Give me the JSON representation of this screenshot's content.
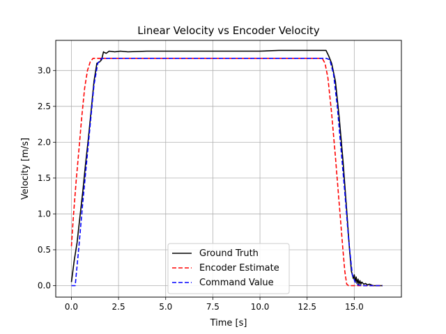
{
  "chart_data": {
    "type": "line",
    "title": "Linear Velocity vs Encoder Velocity",
    "xlabel": "Time [s]",
    "ylabel": "Velocity [m/s]",
    "xlim": [
      -0.83,
      17.5
    ],
    "ylim": [
      -0.16,
      3.42
    ],
    "xticks": [
      0.0,
      2.5,
      5.0,
      7.5,
      10.0,
      12.5,
      15.0
    ],
    "xtick_labels": [
      "0.0",
      "2.5",
      "5.0",
      "7.5",
      "10.0",
      "12.5",
      "15.0"
    ],
    "yticks": [
      0.0,
      0.5,
      1.0,
      1.5,
      2.0,
      2.5,
      3.0
    ],
    "ytick_labels": [
      "0.0",
      "0.5",
      "1.0",
      "1.5",
      "2.0",
      "2.5",
      "3.0"
    ],
    "grid": true,
    "legend_position": "bottom-center",
    "series": [
      {
        "name": "Ground Truth",
        "color": "#000000",
        "style": "solid",
        "x": [
          0.0,
          0.15,
          0.3,
          0.45,
          0.6,
          0.75,
          0.9,
          1.05,
          1.2,
          1.35,
          1.5,
          1.6,
          1.7,
          1.75,
          1.85,
          2.0,
          2.3,
          2.6,
          3.0,
          4.0,
          5.0,
          6.0,
          7.0,
          8.0,
          9.0,
          10.0,
          11.0,
          12.0,
          13.0,
          13.5,
          13.65,
          13.8,
          14.0,
          14.2,
          14.4,
          14.6,
          14.75,
          14.85,
          14.95,
          15.0,
          15.05,
          15.1,
          15.15,
          15.2,
          15.25,
          15.3,
          15.35,
          15.4,
          15.5,
          15.6,
          15.7,
          15.8,
          16.0,
          16.5
        ],
        "values": [
          0.05,
          0.35,
          0.6,
          0.95,
          1.3,
          1.7,
          2.05,
          2.45,
          2.85,
          3.1,
          3.12,
          3.15,
          3.26,
          3.25,
          3.24,
          3.27,
          3.26,
          3.27,
          3.26,
          3.27,
          3.27,
          3.27,
          3.27,
          3.27,
          3.27,
          3.27,
          3.28,
          3.28,
          3.28,
          3.28,
          3.2,
          3.1,
          2.85,
          2.35,
          1.75,
          1.05,
          0.5,
          0.2,
          0.1,
          0.15,
          0.05,
          0.12,
          0.03,
          0.09,
          0.02,
          0.07,
          0.02,
          0.05,
          0.02,
          0.03,
          0.01,
          0.02,
          0.0,
          0.0
        ]
      },
      {
        "name": "Encoder Estimate",
        "color": "#ff0000",
        "style": "dashed",
        "x": [
          0.0,
          0.1,
          0.25,
          0.4,
          0.55,
          0.7,
          0.85,
          1.0,
          1.15,
          1.3,
          2.0,
          13.3,
          13.45,
          13.6,
          13.8,
          14.0,
          14.2,
          14.4,
          14.5,
          14.6,
          14.7,
          15.0,
          16.5
        ],
        "values": [
          0.55,
          0.95,
          1.45,
          1.9,
          2.35,
          2.75,
          3.0,
          3.12,
          3.17,
          3.17,
          3.17,
          3.17,
          3.1,
          2.9,
          2.4,
          1.8,
          1.15,
          0.5,
          0.2,
          0.02,
          0.0,
          0.0,
          0.0
        ]
      },
      {
        "name": "Command Value",
        "color": "#0000ff",
        "style": "dashed",
        "x": [
          0.0,
          0.2,
          0.4,
          0.6,
          0.8,
          1.0,
          1.2,
          1.4,
          1.6,
          2.0,
          13.5,
          13.7,
          13.9,
          14.1,
          14.3,
          14.5,
          14.7,
          14.9,
          15.05,
          15.2,
          15.4,
          16.5
        ],
        "values": [
          0.0,
          0.0,
          0.55,
          1.15,
          1.7,
          2.25,
          2.8,
          3.1,
          3.17,
          3.17,
          3.17,
          3.15,
          2.95,
          2.5,
          1.9,
          1.3,
          0.65,
          0.15,
          0.05,
          0.01,
          0.0,
          0.0
        ]
      }
    ]
  }
}
